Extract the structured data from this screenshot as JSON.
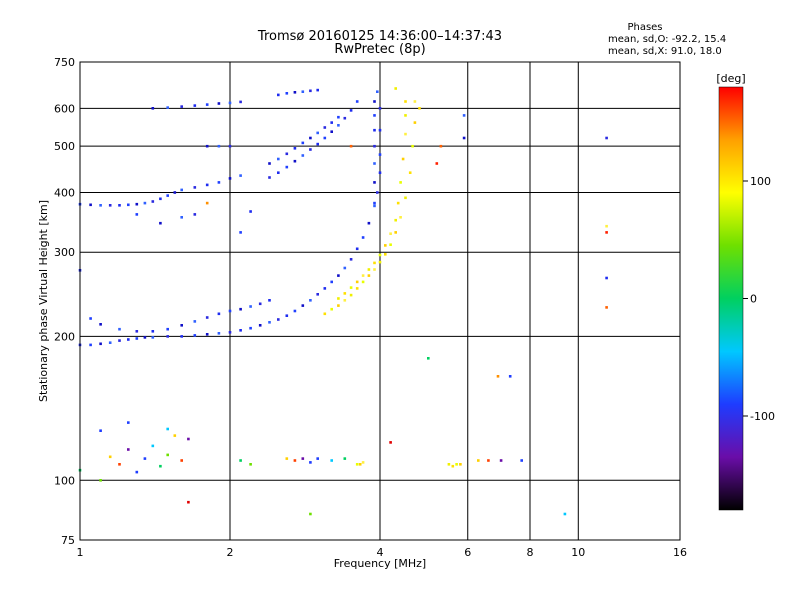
{
  "header": {
    "title_line1": "Tromsø 20160125 14:36:00–14:37:43",
    "title_line2": "RwPretec (8p)",
    "phases_title": "Phases",
    "phases_o": "mean, sd,O: -92.2, 15.4",
    "phases_x": "mean, sd,X:  91.0, 18.0"
  },
  "chart_data": {
    "type": "scatter",
    "title": "Tromsø 20160125 14:36:00–14:37:43",
    "subtitle": "RwPretec (8p)",
    "xlabel": "Frequency [MHz]",
    "ylabel": "Stationary phase Virtual Height [km]",
    "xscale": "log",
    "yscale": "log",
    "xlim": [
      1,
      16
    ],
    "ylim": [
      75,
      750
    ],
    "x_ticks": [
      1,
      2,
      4,
      6,
      8,
      10,
      16
    ],
    "y_ticks": [
      75,
      100,
      200,
      300,
      400,
      500,
      600,
      750
    ],
    "grid": true,
    "colorbar": {
      "label": "[deg]",
      "range": [
        -180,
        180
      ],
      "ticks": [
        100,
        0,
        -100
      ],
      "colors": [
        "#000000",
        "#6a0da8",
        "#1e3cff",
        "#00c8ff",
        "#00d060",
        "#6ee000",
        "#ffff00",
        "#ffa000",
        "#ff0000"
      ]
    },
    "series": [
      {
        "points": [
          [
            1.0,
            192
          ],
          [
            1.05,
            192
          ],
          [
            1.1,
            193
          ],
          [
            1.15,
            194
          ],
          [
            1.2,
            196
          ],
          [
            1.25,
            197
          ],
          [
            1.3,
            198
          ],
          [
            1.35,
            199
          ],
          [
            1.4,
            199
          ],
          [
            1.5,
            200
          ],
          [
            1.6,
            200
          ],
          [
            1.7,
            201
          ],
          [
            1.8,
            202
          ],
          [
            1.9,
            203
          ],
          [
            2.0,
            204
          ],
          [
            2.1,
            206
          ],
          [
            2.2,
            208
          ],
          [
            2.3,
            211
          ],
          [
            2.4,
            214
          ],
          [
            2.5,
            217
          ],
          [
            2.6,
            221
          ],
          [
            2.7,
            226
          ],
          [
            2.8,
            232
          ],
          [
            2.9,
            238
          ],
          [
            3.0,
            245
          ],
          [
            3.1,
            252
          ],
          [
            3.2,
            260
          ],
          [
            3.3,
            268
          ],
          [
            3.4,
            278
          ],
          [
            3.5,
            290
          ],
          [
            3.6,
            305
          ],
          [
            3.7,
            322
          ],
          [
            3.8,
            345
          ],
          [
            3.9,
            375
          ],
          [
            3.95,
            400
          ],
          [
            4.0,
            440
          ],
          [
            1.05,
            218
          ],
          [
            1.1,
            212
          ],
          [
            1.2,
            207
          ],
          [
            1.3,
            205
          ],
          [
            1.4,
            205
          ],
          [
            1.5,
            207
          ],
          [
            1.6,
            211
          ],
          [
            1.7,
            215
          ],
          [
            1.8,
            219
          ],
          [
            1.9,
            223
          ],
          [
            2.0,
            226
          ],
          [
            2.1,
            228
          ],
          [
            2.2,
            231
          ],
          [
            2.3,
            234
          ],
          [
            2.4,
            238
          ],
          [
            1.0,
            378
          ],
          [
            1.05,
            377
          ],
          [
            1.1,
            376
          ],
          [
            1.15,
            376
          ],
          [
            1.2,
            376
          ],
          [
            1.25,
            377
          ],
          [
            1.3,
            378
          ],
          [
            1.35,
            380
          ],
          [
            1.4,
            383
          ],
          [
            1.45,
            388
          ],
          [
            1.5,
            394
          ],
          [
            1.55,
            400
          ],
          [
            1.6,
            405
          ],
          [
            1.7,
            410
          ],
          [
            1.8,
            415
          ],
          [
            1.9,
            420
          ],
          [
            2.0,
            428
          ],
          [
            2.1,
            434
          ],
          [
            2.4,
            430
          ],
          [
            2.5,
            440
          ],
          [
            2.6,
            452
          ],
          [
            2.7,
            465
          ],
          [
            2.8,
            478
          ],
          [
            2.9,
            492
          ],
          [
            3.0,
            505
          ],
          [
            3.1,
            520
          ],
          [
            3.2,
            536
          ],
          [
            3.3,
            553
          ],
          [
            3.4,
            572
          ],
          [
            3.5,
            594
          ],
          [
            3.6,
            620
          ],
          [
            2.4,
            460
          ],
          [
            2.5,
            470
          ],
          [
            2.6,
            482
          ],
          [
            2.7,
            495
          ],
          [
            2.8,
            508
          ],
          [
            2.9,
            520
          ],
          [
            3.0,
            533
          ],
          [
            3.1,
            547
          ],
          [
            3.2,
            560
          ],
          [
            3.3,
            575
          ],
          [
            1.4,
            600
          ],
          [
            1.5,
            602
          ],
          [
            1.6,
            605
          ],
          [
            1.7,
            608
          ],
          [
            1.8,
            611
          ],
          [
            1.9,
            614
          ],
          [
            2.0,
            616
          ],
          [
            2.1,
            619
          ],
          [
            2.5,
            640
          ],
          [
            2.6,
            645
          ],
          [
            2.7,
            648
          ],
          [
            2.8,
            650
          ],
          [
            2.9,
            653
          ],
          [
            3.0,
            655
          ],
          [
            3.9,
            380
          ],
          [
            3.9,
            420
          ],
          [
            3.9,
            460
          ],
          [
            3.9,
            500
          ],
          [
            3.9,
            540
          ],
          [
            3.9,
            580
          ],
          [
            3.9,
            620
          ],
          [
            3.95,
            650
          ],
          [
            4.0,
            600
          ],
          [
            4.0,
            540
          ],
          [
            4.0,
            480
          ],
          [
            1.8,
            500
          ],
          [
            1.9,
            500
          ],
          [
            2.0,
            500
          ],
          [
            1.0,
            275
          ],
          [
            1.3,
            360
          ],
          [
            1.45,
            345
          ],
          [
            1.6,
            355
          ],
          [
            1.7,
            360
          ],
          [
            2.2,
            365
          ],
          [
            2.1,
            330
          ],
          [
            5.9,
            520
          ],
          [
            5.9,
            580
          ],
          [
            11.4,
            520
          ],
          [
            11.4,
            265
          ]
        ],
        "color": "blue"
      },
      {
        "points": [
          [
            3.1,
            223
          ],
          [
            3.2,
            228
          ],
          [
            3.3,
            232
          ],
          [
            3.4,
            238
          ],
          [
            3.5,
            244
          ],
          [
            3.6,
            252
          ],
          [
            3.7,
            260
          ],
          [
            3.8,
            268
          ],
          [
            3.9,
            276
          ],
          [
            4.0,
            286
          ],
          [
            4.1,
            297
          ],
          [
            4.2,
            311
          ],
          [
            4.3,
            330
          ],
          [
            4.4,
            355
          ],
          [
            4.5,
            390
          ],
          [
            4.6,
            440
          ],
          [
            4.65,
            500
          ],
          [
            4.7,
            560
          ],
          [
            4.7,
            620
          ],
          [
            3.3,
            240
          ],
          [
            3.4,
            246
          ],
          [
            3.5,
            253
          ],
          [
            3.6,
            260
          ],
          [
            3.7,
            268
          ],
          [
            3.8,
            276
          ],
          [
            3.9,
            285
          ],
          [
            4.0,
            296
          ],
          [
            4.1,
            310
          ],
          [
            4.2,
            328
          ],
          [
            4.3,
            350
          ],
          [
            4.35,
            380
          ],
          [
            4.4,
            420
          ],
          [
            4.45,
            470
          ],
          [
            4.5,
            530
          ],
          [
            4.5,
            580
          ],
          [
            4.5,
            620
          ],
          [
            3.6,
            108
          ],
          [
            3.65,
            108
          ],
          [
            3.7,
            109
          ],
          [
            5.5,
            108
          ],
          [
            5.6,
            107
          ],
          [
            5.7,
            108
          ],
          [
            5.8,
            108
          ],
          [
            11.4,
            340
          ],
          [
            4.3,
            660
          ],
          [
            4.8,
            600
          ]
        ],
        "color": "yellow"
      },
      {
        "points": [
          [
            5.3,
            500
          ],
          [
            4.2,
            120
          ],
          [
            6.9,
            165
          ],
          [
            11.4,
            330
          ],
          [
            11.4,
            230
          ],
          [
            1.65,
            90
          ],
          [
            1.8,
            380
          ],
          [
            5.2,
            460
          ],
          [
            3.5,
            500
          ]
        ],
        "color": "red"
      },
      {
        "points": [
          [
            1.0,
            105
          ],
          [
            1.1,
            100
          ],
          [
            1.15,
            112
          ],
          [
            1.2,
            108
          ],
          [
            1.25,
            116
          ],
          [
            1.3,
            104
          ],
          [
            1.35,
            111
          ],
          [
            1.4,
            118
          ],
          [
            1.45,
            107
          ],
          [
            1.5,
            113
          ],
          [
            1.55,
            124
          ],
          [
            1.6,
            110
          ],
          [
            1.65,
            122
          ],
          [
            1.1,
            127
          ],
          [
            1.25,
            132
          ],
          [
            1.5,
            128
          ],
          [
            2.1,
            110
          ],
          [
            2.2,
            108
          ],
          [
            2.6,
            111
          ],
          [
            2.7,
            110
          ],
          [
            2.8,
            111
          ],
          [
            2.9,
            109
          ],
          [
            3.0,
            111
          ],
          [
            3.2,
            110
          ],
          [
            3.4,
            111
          ],
          [
            2.9,
            85
          ],
          [
            6.3,
            110
          ],
          [
            6.6,
            110
          ],
          [
            7.0,
            110
          ],
          [
            7.3,
            165
          ],
          [
            7.7,
            110
          ],
          [
            9.4,
            85
          ],
          [
            5.0,
            180
          ]
        ],
        "color": "mixed"
      }
    ]
  },
  "colors": {
    "grid": "#000000",
    "background": "#ffffff"
  }
}
